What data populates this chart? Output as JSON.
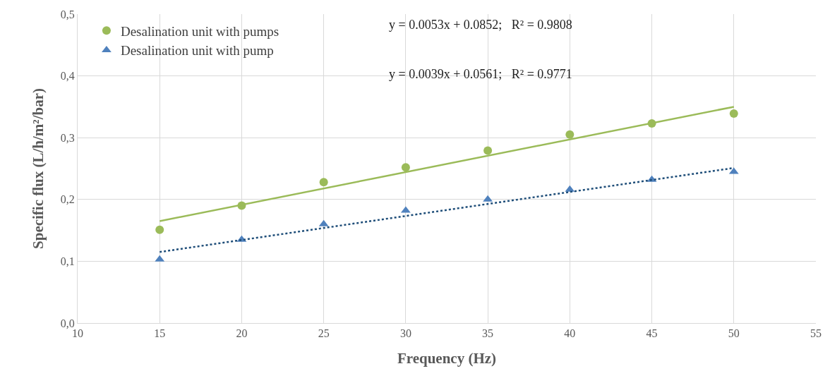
{
  "chart_data": {
    "type": "scatter",
    "xlabel": "Frequency (Hz)",
    "ylabel": "Specific flux (L/h/m²/bar)",
    "xlim": [
      10,
      55
    ],
    "xticks": [
      10,
      15,
      20,
      25,
      30,
      35,
      40,
      45,
      50,
      55
    ],
    "ylim": [
      0,
      0.5
    ],
    "yticks": [
      {
        "value": 0,
        "label": "0,0"
      },
      {
        "value": 0.1,
        "label": "0,1"
      },
      {
        "value": 0.2,
        "label": "0,2"
      },
      {
        "value": 0.3,
        "label": "0,3"
      },
      {
        "value": 0.4,
        "label": "0,4"
      },
      {
        "value": 0.5,
        "label": "0,5"
      }
    ],
    "grid": true,
    "legend": "top left",
    "annotations": [
      "y = 0.0053x + 0.0852;   R² = 0.9808",
      "y = 0.0039x + 0.0561;   R² = 0.9771"
    ],
    "series": [
      {
        "name": "Desalination unit with pumps",
        "marker": "circle",
        "color": "#9bbb59",
        "x": [
          15,
          20,
          25,
          30,
          35,
          40,
          45,
          50
        ],
        "values": [
          0.151,
          0.19,
          0.228,
          0.252,
          0.279,
          0.305,
          0.323,
          0.339
        ]
      },
      {
        "name": "Desalination unit with pump",
        "marker": "triangle",
        "color": "#4f81bd",
        "x": [
          15,
          20,
          25,
          30,
          35,
          40,
          45,
          50
        ],
        "values": [
          0.103,
          0.135,
          0.16,
          0.182,
          0.2,
          0.216,
          0.232,
          0.245
        ]
      },
      {
        "type": "line",
        "line_style": "solid",
        "color": "#9bbb59",
        "x": [
          15,
          50
        ],
        "values": [
          0.165,
          0.35
        ]
      },
      {
        "type": "line",
        "line_style": "dotted",
        "color": "#1f4e79",
        "x": [
          15,
          50
        ],
        "values": [
          0.115,
          0.251
        ]
      }
    ]
  }
}
